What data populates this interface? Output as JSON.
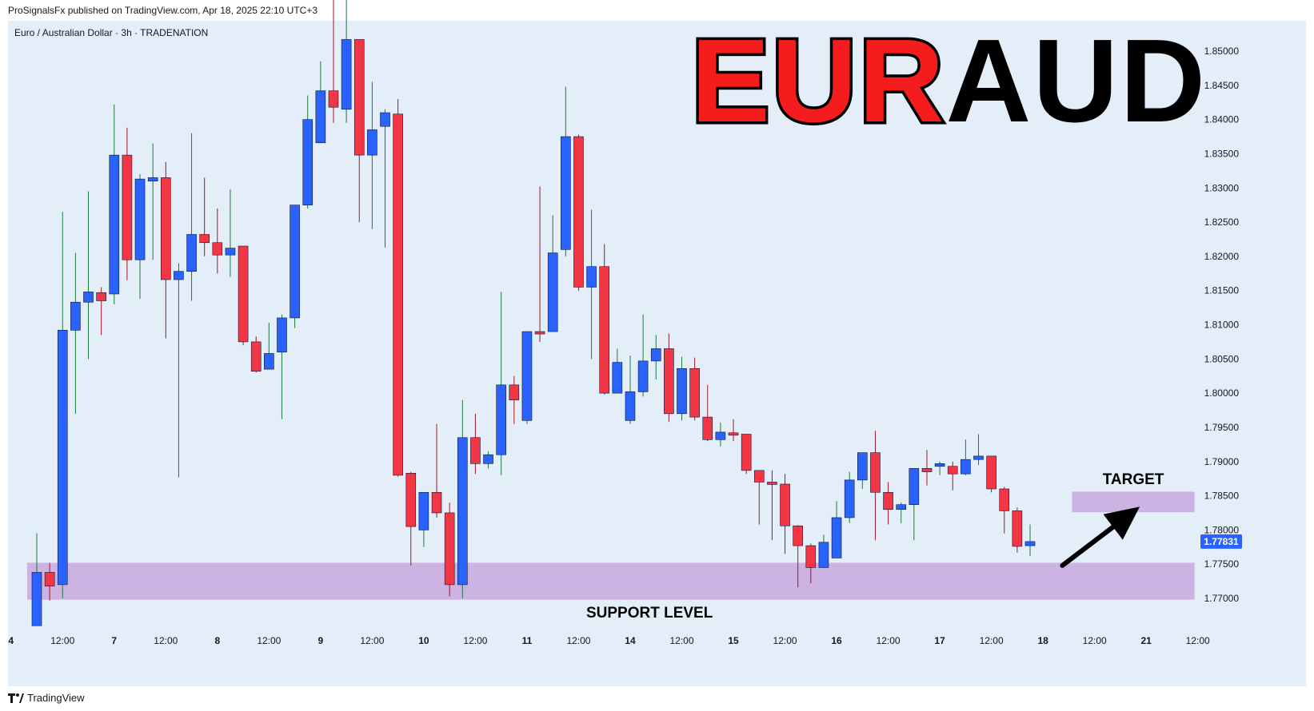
{
  "publisher_line": "ProSignalsFx published on TradingView.com, Apr 18, 2025 22:10 UTC+3",
  "symbol_title": "Euro / Australian Dollar · 3h · TRADENATION",
  "headline": {
    "part1": "EUR",
    "part2": "AUD"
  },
  "footer": {
    "brand": "TradingView",
    "icon": "tradingview-logo-icon"
  },
  "colors": {
    "background": "#e3eef9",
    "bull": "#2962ff",
    "bear": "#f23645",
    "zone": "#c9a8e0",
    "price_tag": "#2962ff",
    "headline_red": "#f41c1c"
  },
  "chart_data": {
    "type": "candlestick",
    "symbol": "Euro / Australian Dollar",
    "timeframe": "3h",
    "ylim": [
      1.7655,
      1.8585
    ],
    "y_ticks": [
      "1.85000",
      "1.84500",
      "1.84000",
      "1.83500",
      "1.83000",
      "1.82500",
      "1.82000",
      "1.81500",
      "1.81000",
      "1.80500",
      "1.80000",
      "1.79500",
      "1.79000",
      "1.78500",
      "1.78000",
      "1.77500",
      "1.77000"
    ],
    "x_ticks": [
      {
        "label": "4",
        "index": -2.0
      },
      {
        "label": "12:00",
        "index": 2.0
      },
      {
        "label": "7",
        "index": 6.0
      },
      {
        "label": "12:00",
        "index": 10.0
      },
      {
        "label": "8",
        "index": 14.0
      },
      {
        "label": "12:00",
        "index": 18.0
      },
      {
        "label": "9",
        "index": 22.0
      },
      {
        "label": "12:00",
        "index": 26.0
      },
      {
        "label": "10",
        "index": 30.0
      },
      {
        "label": "12:00",
        "index": 34.0
      },
      {
        "label": "11",
        "index": 38.0
      },
      {
        "label": "12:00",
        "index": 42.0
      },
      {
        "label": "14",
        "index": 46.0
      },
      {
        "label": "12:00",
        "index": 50.0
      },
      {
        "label": "15",
        "index": 54.0
      },
      {
        "label": "12:00",
        "index": 58.0
      },
      {
        "label": "16",
        "index": 62.0
      },
      {
        "label": "12:00",
        "index": 66.0
      },
      {
        "label": "17",
        "index": 70.0
      },
      {
        "label": "12:00",
        "index": 74.0
      },
      {
        "label": "18",
        "index": 78.0
      },
      {
        "label": "12:00",
        "index": 82.0
      },
      {
        "label": "21",
        "index": 86.0
      },
      {
        "label": "12:00",
        "index": 90.0
      }
    ],
    "candles": [
      {
        "o": 1.766,
        "h": 1.7795,
        "l": 1.766,
        "c": 1.7738
      },
      {
        "o": 1.7738,
        "h": 1.7752,
        "l": 1.7697,
        "c": 1.7718
      },
      {
        "o": 1.772,
        "h": 1.8265,
        "l": 1.77,
        "c": 1.8092
      },
      {
        "o": 1.8092,
        "h": 1.8205,
        "l": 1.797,
        "c": 1.8133
      },
      {
        "o": 1.8133,
        "h": 1.8295,
        "l": 1.805,
        "c": 1.8148
      },
      {
        "o": 1.8147,
        "h": 1.8155,
        "l": 1.8085,
        "c": 1.8135
      },
      {
        "o": 1.8145,
        "h": 1.8422,
        "l": 1.813,
        "c": 1.8348
      },
      {
        "o": 1.8348,
        "h": 1.8388,
        "l": 1.8165,
        "c": 1.8195
      },
      {
        "o": 1.8195,
        "h": 1.832,
        "l": 1.8138,
        "c": 1.8313
      },
      {
        "o": 1.831,
        "h": 1.8365,
        "l": 1.8195,
        "c": 1.8315
      },
      {
        "o": 1.8315,
        "h": 1.8338,
        "l": 1.808,
        "c": 1.8166
      },
      {
        "o": 1.8166,
        "h": 1.819,
        "l": 1.7877,
        "c": 1.8178
      },
      {
        "o": 1.8178,
        "h": 1.838,
        "l": 1.8135,
        "c": 1.8232
      },
      {
        "o": 1.8232,
        "h": 1.8315,
        "l": 1.82,
        "c": 1.822
      },
      {
        "o": 1.822,
        "h": 1.827,
        "l": 1.8175,
        "c": 1.8202
      },
      {
        "o": 1.8202,
        "h": 1.8298,
        "l": 1.817,
        "c": 1.8212
      },
      {
        "o": 1.8215,
        "h": 1.8215,
        "l": 1.807,
        "c": 1.8075
      },
      {
        "o": 1.8075,
        "h": 1.8083,
        "l": 1.803,
        "c": 1.8032
      },
      {
        "o": 1.8035,
        "h": 1.8103,
        "l": 1.8035,
        "c": 1.8058
      },
      {
        "o": 1.806,
        "h": 1.8115,
        "l": 1.7962,
        "c": 1.811
      },
      {
        "o": 1.811,
        "h": 1.8275,
        "l": 1.8095,
        "c": 1.8275
      },
      {
        "o": 1.8275,
        "h": 1.8435,
        "l": 1.827,
        "c": 1.84
      },
      {
        "o": 1.8366,
        "h": 1.8485,
        "l": 1.8366,
        "c": 1.8442
      },
      {
        "o": 1.8442,
        "h": 1.8578,
        "l": 1.8395,
        "c": 1.8418
      },
      {
        "o": 1.8415,
        "h": 1.8585,
        "l": 1.8395,
        "c": 1.8517
      },
      {
        "o": 1.8517,
        "h": 1.8517,
        "l": 1.825,
        "c": 1.8348
      },
      {
        "o": 1.8348,
        "h": 1.8455,
        "l": 1.824,
        "c": 1.8385
      },
      {
        "o": 1.839,
        "h": 1.8415,
        "l": 1.8213,
        "c": 1.841
      },
      {
        "o": 1.8408,
        "h": 1.843,
        "l": 1.7878,
        "c": 1.788
      },
      {
        "o": 1.7883,
        "h": 1.7885,
        "l": 1.7748,
        "c": 1.7805
      },
      {
        "o": 1.78,
        "h": 1.7855,
        "l": 1.7775,
        "c": 1.7855
      },
      {
        "o": 1.7855,
        "h": 1.7955,
        "l": 1.7818,
        "c": 1.7825
      },
      {
        "o": 1.7825,
        "h": 1.784,
        "l": 1.7703,
        "c": 1.772
      },
      {
        "o": 1.772,
        "h": 1.799,
        "l": 1.77,
        "c": 1.7935
      },
      {
        "o": 1.7935,
        "h": 1.797,
        "l": 1.7882,
        "c": 1.7897
      },
      {
        "o": 1.7897,
        "h": 1.7915,
        "l": 1.789,
        "c": 1.791
      },
      {
        "o": 1.791,
        "h": 1.8148,
        "l": 1.788,
        "c": 1.8012
      },
      {
        "o": 1.8012,
        "h": 1.8025,
        "l": 1.7955,
        "c": 1.799
      },
      {
        "o": 1.796,
        "h": 1.809,
        "l": 1.7955,
        "c": 1.809
      },
      {
        "o": 1.809,
        "h": 1.8302,
        "l": 1.8075,
        "c": 1.8088
      },
      {
        "o": 1.809,
        "h": 1.826,
        "l": 1.809,
        "c": 1.8205
      },
      {
        "o": 1.821,
        "h": 1.8448,
        "l": 1.82,
        "c": 1.8375
      },
      {
        "o": 1.8375,
        "h": 1.8378,
        "l": 1.815,
        "c": 1.8155
      },
      {
        "o": 1.8155,
        "h": 1.8268,
        "l": 1.805,
        "c": 1.8185
      },
      {
        "o": 1.8185,
        "h": 1.8218,
        "l": 1.7998,
        "c": 1.8
      },
      {
        "o": 1.8,
        "h": 1.8065,
        "l": 1.8,
        "c": 1.8045
      },
      {
        "o": 1.796,
        "h": 1.8055,
        "l": 1.7955,
        "c": 1.8002
      },
      {
        "o": 1.8002,
        "h": 1.8115,
        "l": 1.7995,
        "c": 1.8047
      },
      {
        "o": 1.8047,
        "h": 1.8085,
        "l": 1.802,
        "c": 1.8065
      },
      {
        "o": 1.8065,
        "h": 1.8087,
        "l": 1.7958,
        "c": 1.797
      },
      {
        "o": 1.797,
        "h": 1.8053,
        "l": 1.796,
        "c": 1.8036
      },
      {
        "o": 1.8036,
        "h": 1.8052,
        "l": 1.796,
        "c": 1.7965
      },
      {
        "o": 1.7965,
        "h": 1.8012,
        "l": 1.793,
        "c": 1.7932
      },
      {
        "o": 1.7932,
        "h": 1.7957,
        "l": 1.7922,
        "c": 1.7943
      },
      {
        "o": 1.7942,
        "h": 1.7962,
        "l": 1.793,
        "c": 1.794
      },
      {
        "o": 1.794,
        "h": 1.794,
        "l": 1.7882,
        "c": 1.7887
      },
      {
        "o": 1.7887,
        "h": 1.7885,
        "l": 1.7808,
        "c": 1.787
      },
      {
        "o": 1.787,
        "h": 1.7887,
        "l": 1.7785,
        "c": 1.7867
      },
      {
        "o": 1.7867,
        "h": 1.7882,
        "l": 1.7765,
        "c": 1.7806
      },
      {
        "o": 1.7806,
        "h": 1.7807,
        "l": 1.7716,
        "c": 1.7777
      },
      {
        "o": 1.7777,
        "h": 1.778,
        "l": 1.7722,
        "c": 1.7745
      },
      {
        "o": 1.7745,
        "h": 1.7793,
        "l": 1.7745,
        "c": 1.7782
      },
      {
        "o": 1.7759,
        "h": 1.7842,
        "l": 1.7759,
        "c": 1.7818
      },
      {
        "o": 1.7818,
        "h": 1.7885,
        "l": 1.781,
        "c": 1.7873
      },
      {
        "o": 1.7873,
        "h": 1.7913,
        "l": 1.786,
        "c": 1.7913
      },
      {
        "o": 1.7913,
        "h": 1.7945,
        "l": 1.7785,
        "c": 1.7855
      },
      {
        "o": 1.7855,
        "h": 1.787,
        "l": 1.7808,
        "c": 1.783
      },
      {
        "o": 1.783,
        "h": 1.784,
        "l": 1.781,
        "c": 1.7837
      },
      {
        "o": 1.7837,
        "h": 1.789,
        "l": 1.7785,
        "c": 1.789
      },
      {
        "o": 1.789,
        "h": 1.7917,
        "l": 1.7865,
        "c": 1.7885
      },
      {
        "o": 1.7893,
        "h": 1.79,
        "l": 1.788,
        "c": 1.7897
      },
      {
        "o": 1.7893,
        "h": 1.79,
        "l": 1.7858,
        "c": 1.7882
      },
      {
        "o": 1.7882,
        "h": 1.7932,
        "l": 1.788,
        "c": 1.7903
      },
      {
        "o": 1.7903,
        "h": 1.794,
        "l": 1.7895,
        "c": 1.7908
      },
      {
        "o": 1.7908,
        "h": 1.7908,
        "l": 1.7855,
        "c": 1.786
      },
      {
        "o": 1.786,
        "h": 1.7863,
        "l": 1.7795,
        "c": 1.7828
      },
      {
        "o": 1.7828,
        "h": 1.7833,
        "l": 1.7767,
        "c": 1.7776
      },
      {
        "o": 1.7777,
        "h": 1.7808,
        "l": 1.7762,
        "c": 1.7783
      }
    ],
    "zones": [
      {
        "name": "support",
        "y_low": 1.7698,
        "y_high": 1.7752,
        "x_from": -0.5,
        "x_to": 89.5
      },
      {
        "name": "target",
        "y_low": 1.7826,
        "y_high": 1.7856,
        "x_from": 80.5,
        "x_to": 89.5
      }
    ],
    "annotations": [
      {
        "text": "SUPPORT LEVEL",
        "x": 47.5,
        "y": 1.768
      },
      {
        "text": "TARGET",
        "x": 85.0,
        "y": 1.7875
      }
    ],
    "arrow": {
      "from": {
        "x": 79.5,
        "y": 1.7748
      },
      "to": {
        "x": 85.5,
        "y": 1.7834
      }
    },
    "last_price": "1.77831",
    "last_price_value": 1.77831
  }
}
